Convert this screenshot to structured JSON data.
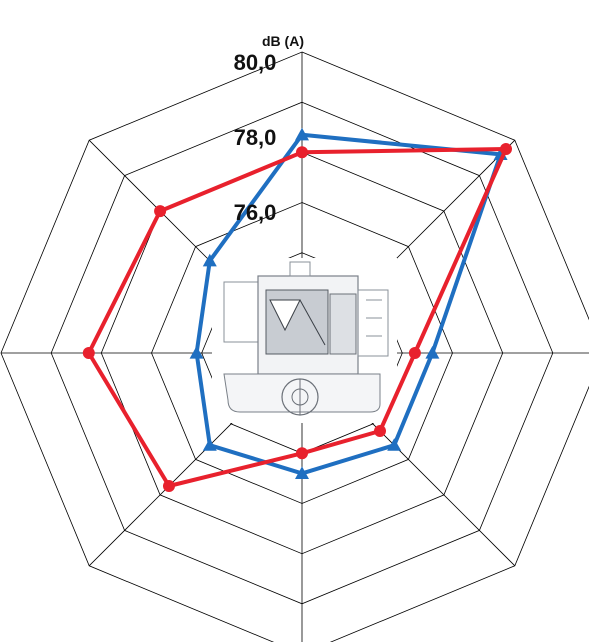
{
  "chart_data": {
    "type": "radar",
    "unit_label": "dB  (A)",
    "axes_count": 8,
    "rings": [
      70,
      72,
      74,
      76,
      78,
      80
    ],
    "r_min": 68,
    "r_max": 80,
    "tick_labels": [
      {
        "value": 80,
        "label": "80,0"
      },
      {
        "value": 78,
        "label": "78,0"
      },
      {
        "value": 76,
        "label": "76,0"
      }
    ],
    "grid": true,
    "legend": "none",
    "center_image": "device-cross-section-diagram",
    "series": [
      {
        "color": "#1f6fc1",
        "marker": "triangle",
        "values": [
          76.7,
          79.2,
          73.2,
          73.2,
          72.8,
          73.2,
          72.2,
          73.2
        ]
      },
      {
        "color": "#e8212d",
        "marker": "circle",
        "values": [
          76.0,
          79.5,
          72.5,
          72.4,
          72.0,
          75.5,
          76.5,
          76.0
        ]
      }
    ]
  }
}
